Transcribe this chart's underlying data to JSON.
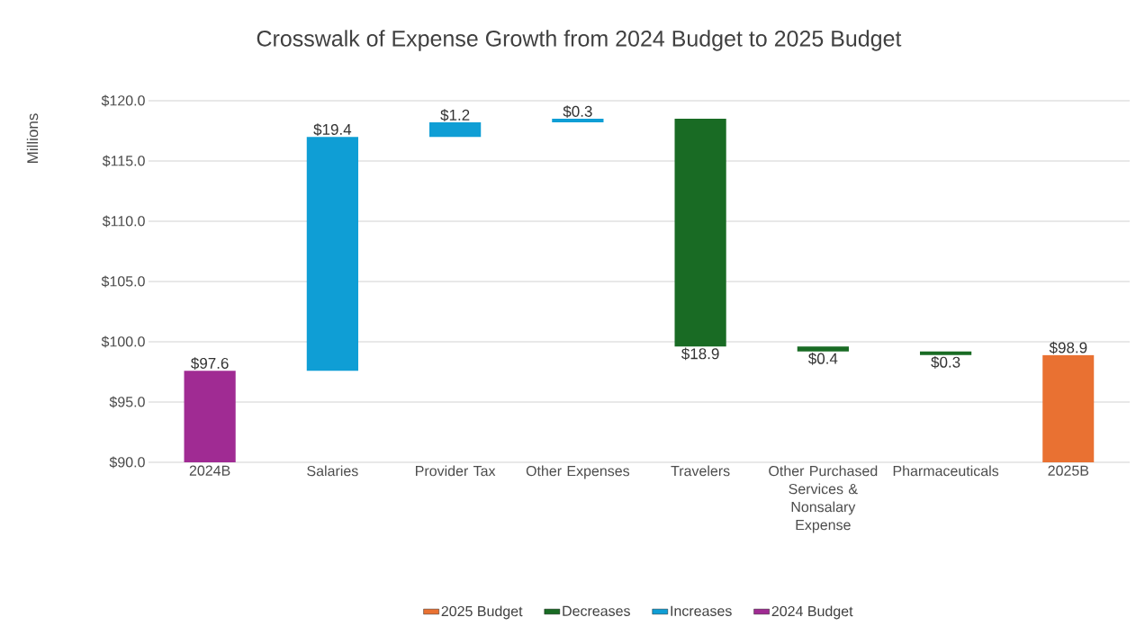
{
  "chart_data": {
    "type": "bar",
    "title": "Crosswalk of Expense Growth from 2024 Budget to 2025 Budget",
    "ylabel": "Millions",
    "categories": [
      "2024B",
      "Salaries",
      "Provider Tax",
      "Other Expenses",
      "Travelers",
      "Other Purchased Services & Nonsalary Expense",
      "Pharmaceuticals",
      "2025B"
    ],
    "series": [
      {
        "name": "2025 Budget",
        "color": "#e97132",
        "values": [
          null,
          null,
          null,
          null,
          null,
          null,
          null,
          98.9
        ],
        "value_labels": [
          null,
          null,
          null,
          null,
          null,
          null,
          null,
          "$98.9"
        ]
      },
      {
        "name": "Decreases",
        "color": "#196b24",
        "base": [
          null,
          null,
          null,
          null,
          99.6,
          99.2,
          98.9,
          null
        ],
        "values": [
          null,
          null,
          null,
          null,
          18.9,
          0.4,
          0.3,
          null
        ],
        "value_labels": [
          null,
          null,
          null,
          null,
          "$18.9",
          "$0.4",
          "$0.3",
          null
        ]
      },
      {
        "name": "Increases",
        "color": "#0f9ed5",
        "base": [
          null,
          97.6,
          117.0,
          118.2,
          null,
          null,
          null,
          null
        ],
        "values": [
          null,
          19.4,
          1.2,
          0.3,
          null,
          null,
          null,
          null
        ],
        "value_labels": [
          null,
          "$19.4",
          "$1.2",
          "$0.3",
          null,
          null,
          null,
          null
        ]
      },
      {
        "name": "2024 Budget",
        "color": "#a02b93",
        "values": [
          97.6,
          null,
          null,
          null,
          null,
          null,
          null,
          null
        ],
        "value_labels": [
          "$97.6",
          null,
          null,
          null,
          null,
          null,
          null,
          null
        ]
      }
    ],
    "ylim": [
      90,
      120
    ],
    "yticks": [
      {
        "value": 90,
        "label": "$90.0"
      },
      {
        "value": 95,
        "label": "$95.0"
      },
      {
        "value": 100,
        "label": "$100.0"
      },
      {
        "value": 105,
        "label": "$105.0"
      },
      {
        "value": 110,
        "label": "$110.0"
      },
      {
        "value": 115,
        "label": "$115.0"
      },
      {
        "value": 120,
        "label": "$120.0"
      }
    ],
    "grid": "y",
    "legend": "bottom"
  }
}
